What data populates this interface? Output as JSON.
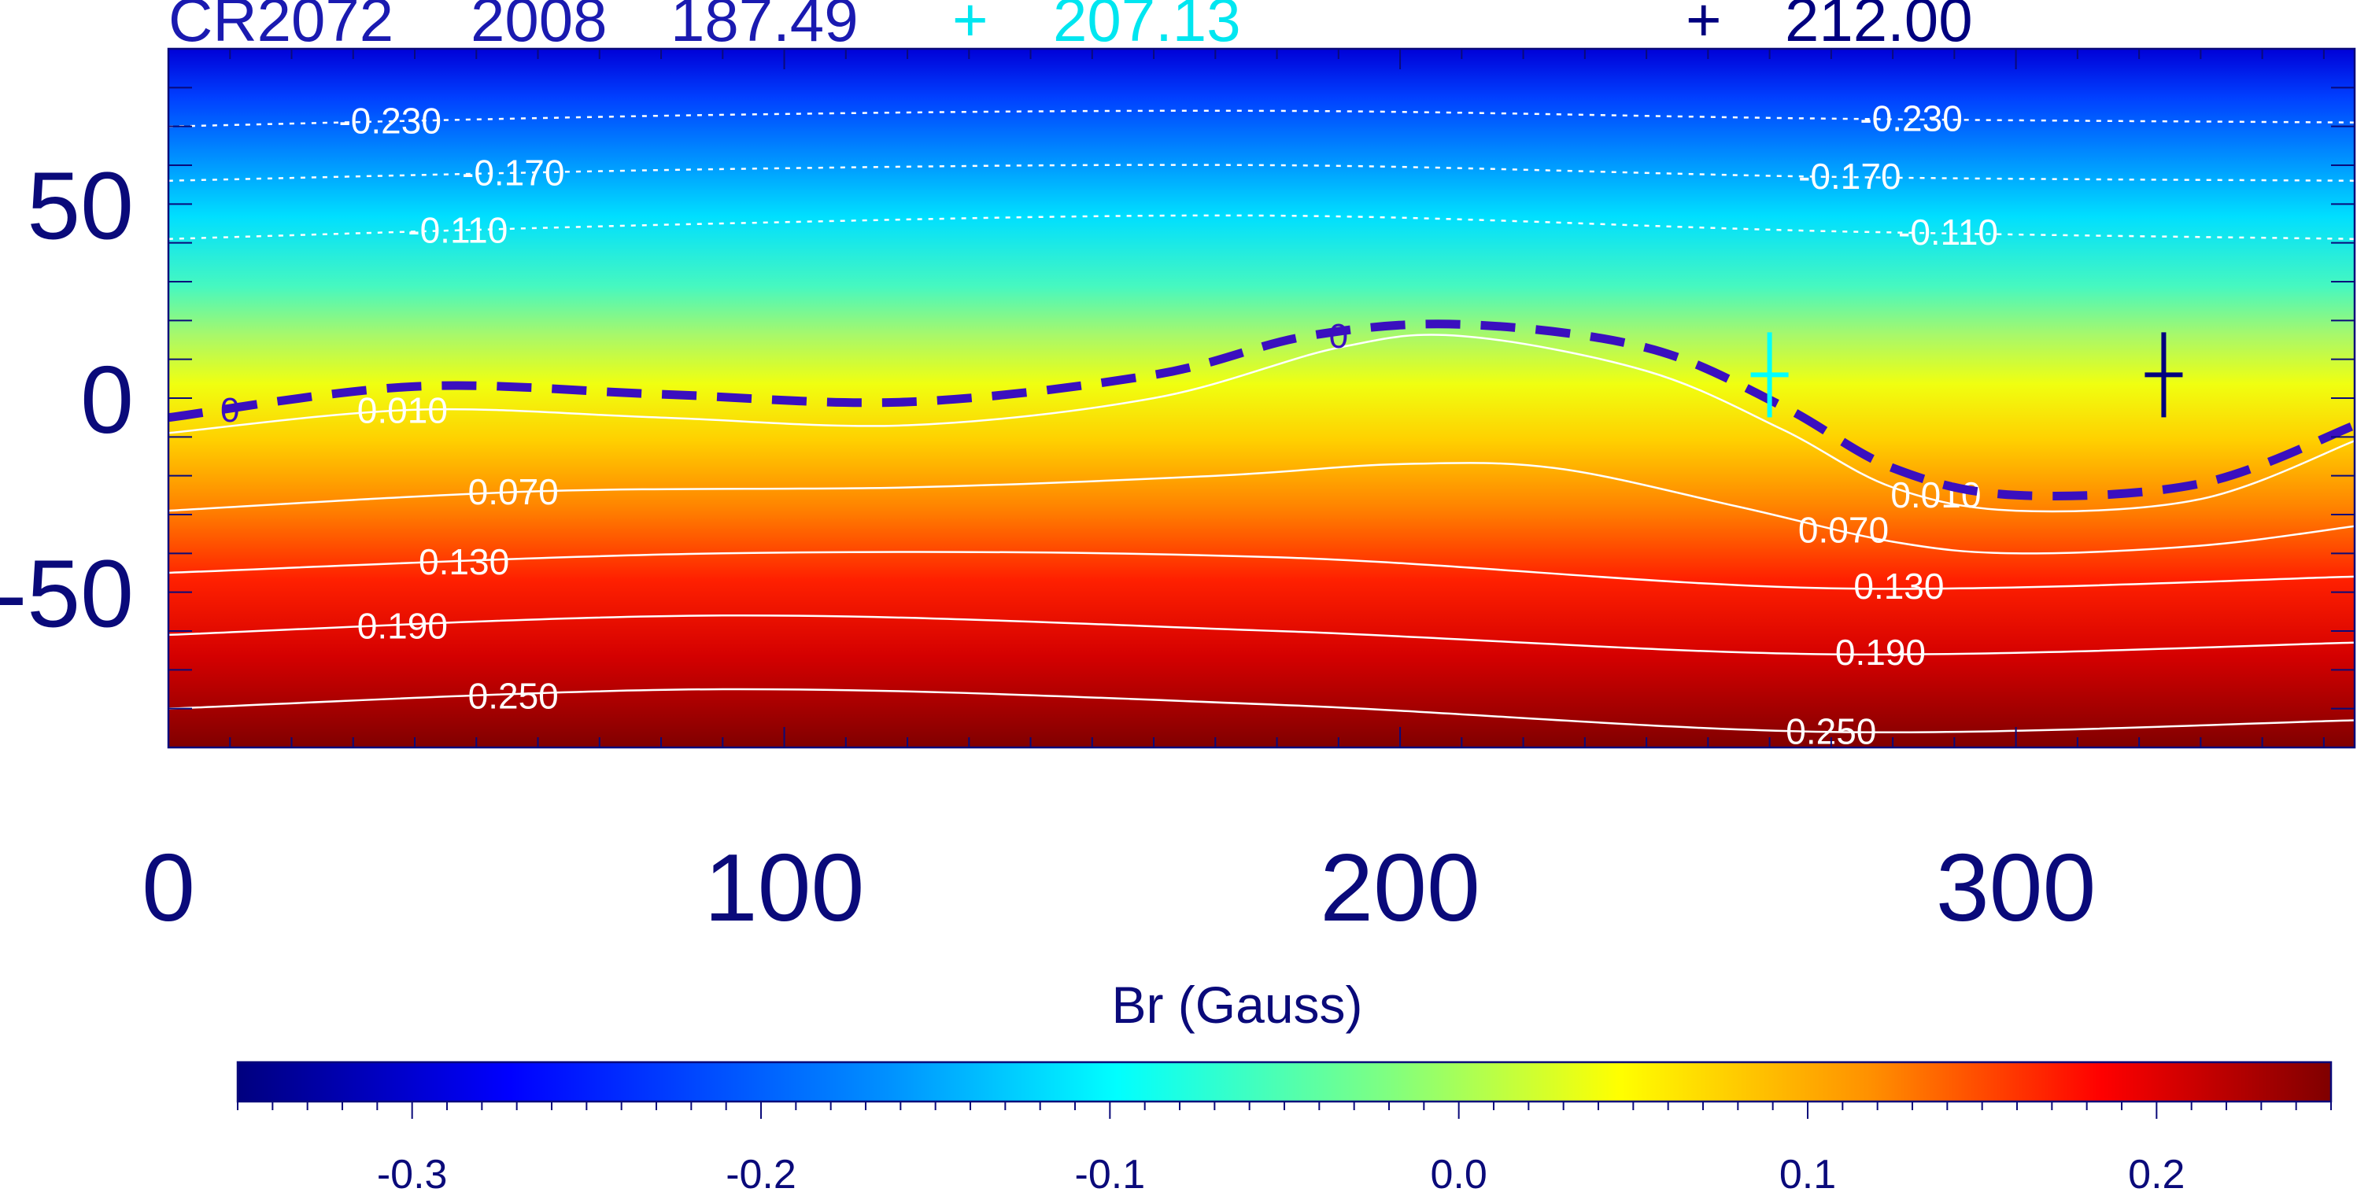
{
  "header": {
    "rotation_label": "CR2072",
    "year": "2008",
    "value1": "187.49",
    "marker1_symbol": "+",
    "marker1_value": "207.13",
    "marker2_symbol": "+",
    "marker2_value": "212.00"
  },
  "colors": {
    "text_navy": "#0a0a7a",
    "marker1": "#00ffff",
    "marker2": "#00007f",
    "neutral_line": "#3a0fbf",
    "contour": "#ffffff"
  },
  "chart_data": {
    "type": "heatmap",
    "title": "",
    "xlabel": "",
    "ylabel": "",
    "xlim": [
      0,
      355
    ],
    "ylim": [
      -90,
      90
    ],
    "x_ticks": [
      "0",
      "100",
      "200",
      "300"
    ],
    "y_ticks": [
      "50",
      "0",
      "-50"
    ],
    "colorbar": {
      "label": "Br (Gauss)",
      "range": [
        -0.35,
        0.25
      ],
      "ticks": [
        "-0.3",
        "-0.2",
        "-0.1",
        "0.0",
        "0.1",
        "0.2"
      ]
    },
    "neutral_line": {
      "level": "0",
      "points": [
        [
          0,
          -5
        ],
        [
          40,
          3
        ],
        [
          80,
          1
        ],
        [
          120,
          -1
        ],
        [
          160,
          6
        ],
        [
          185,
          16
        ],
        [
          210,
          19
        ],
        [
          240,
          13
        ],
        [
          262,
          -2
        ],
        [
          280,
          -18
        ],
        [
          300,
          -25
        ],
        [
          330,
          -22
        ],
        [
          355,
          -7
        ]
      ]
    },
    "contours": [
      {
        "level": "-0.230",
        "points": [
          [
            0,
            70
          ],
          [
            90,
            73
          ],
          [
            180,
            74
          ],
          [
            270,
            72
          ],
          [
            355,
            71
          ]
        ]
      },
      {
        "level": "-0.170",
        "points": [
          [
            0,
            56
          ],
          [
            90,
            59
          ],
          [
            180,
            60
          ],
          [
            270,
            57
          ],
          [
            355,
            56
          ]
        ]
      },
      {
        "level": "-0.110",
        "points": [
          [
            0,
            41
          ],
          [
            90,
            45
          ],
          [
            180,
            47
          ],
          [
            270,
            43
          ],
          [
            355,
            41
          ]
        ]
      },
      {
        "level": "0.010",
        "points": [
          [
            0,
            -9
          ],
          [
            40,
            -3
          ],
          [
            80,
            -5
          ],
          [
            120,
            -7
          ],
          [
            160,
            0
          ],
          [
            190,
            13
          ],
          [
            210,
            16
          ],
          [
            240,
            7
          ],
          [
            262,
            -8
          ],
          [
            280,
            -23
          ],
          [
            300,
            -29
          ],
          [
            330,
            -26
          ],
          [
            355,
            -11
          ]
        ]
      },
      {
        "level": "0.070",
        "points": [
          [
            0,
            -29
          ],
          [
            60,
            -24
          ],
          [
            120,
            -23
          ],
          [
            170,
            -20
          ],
          [
            200,
            -17
          ],
          [
            225,
            -18
          ],
          [
            255,
            -28
          ],
          [
            280,
            -37
          ],
          [
            300,
            -40
          ],
          [
            330,
            -38
          ],
          [
            355,
            -33
          ]
        ]
      },
      {
        "level": "0.130",
        "points": [
          [
            0,
            -45
          ],
          [
            90,
            -40
          ],
          [
            180,
            -41
          ],
          [
            270,
            -49
          ],
          [
            355,
            -46
          ]
        ]
      },
      {
        "level": "0.190",
        "points": [
          [
            0,
            -61
          ],
          [
            90,
            -56
          ],
          [
            180,
            -60
          ],
          [
            270,
            -66
          ],
          [
            355,
            -63
          ]
        ]
      },
      {
        "level": "0.250",
        "points": [
          [
            0,
            -80
          ],
          [
            90,
            -75
          ],
          [
            180,
            -79
          ],
          [
            270,
            -86
          ],
          [
            355,
            -83
          ]
        ]
      }
    ],
    "markers": [
      {
        "value": "207.13",
        "x": 260,
        "y": 6
      },
      {
        "value": "212.00",
        "x": 324,
        "y": 6
      }
    ]
  }
}
